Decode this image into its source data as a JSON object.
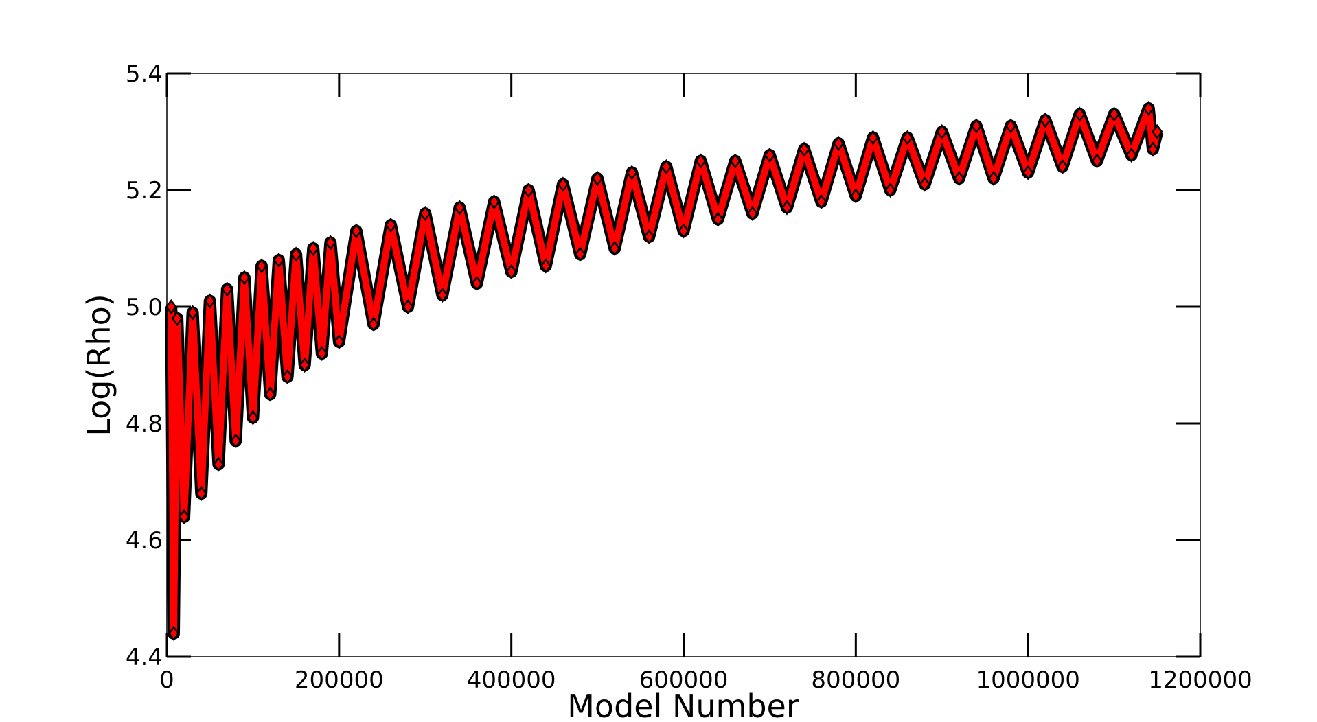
{
  "chart_data": {
    "type": "line",
    "xlabel": "Model Number",
    "ylabel": "Log(Rho)",
    "xlim": [
      0,
      1200000
    ],
    "xticks": [
      0,
      200000,
      400000,
      600000,
      800000,
      1000000,
      1200000
    ],
    "ylim": [
      4.4,
      5.4
    ],
    "yticks": [
      4.4,
      4.6,
      4.8,
      {
        "value": 5.0,
        "label": "5.0"
      },
      5.2,
      5.4
    ],
    "grid": false,
    "marker": "diamond",
    "edge_color": "#000000",
    "series": [
      {
        "color": "#ff0000",
        "x": [
          5000,
          8000,
          12000,
          20000,
          30000,
          40000,
          50000,
          60000,
          70000,
          80000,
          90000,
          100000,
          110000,
          120000,
          130000,
          140000,
          150000,
          160000,
          170000,
          180000,
          190000,
          200000,
          220000,
          240000,
          260000,
          280000,
          300000,
          320000,
          340000,
          360000,
          380000,
          400000,
          420000,
          440000,
          460000,
          480000,
          500000,
          520000,
          540000,
          560000,
          580000,
          600000,
          620000,
          640000,
          660000,
          680000,
          700000,
          720000,
          740000,
          760000,
          780000,
          800000,
          820000,
          840000,
          860000,
          880000,
          900000,
          920000,
          940000,
          960000,
          980000,
          1000000,
          1020000,
          1040000,
          1060000,
          1080000,
          1100000,
          1120000,
          1140000,
          1145000,
          1150000
        ],
        "values": [
          5.0,
          4.44,
          4.98,
          4.64,
          4.99,
          4.68,
          5.01,
          4.73,
          5.03,
          4.77,
          5.05,
          4.81,
          5.07,
          4.85,
          5.08,
          4.88,
          5.09,
          4.9,
          5.1,
          4.92,
          5.11,
          4.94,
          5.13,
          4.97,
          5.14,
          5.0,
          5.16,
          5.02,
          5.17,
          5.04,
          5.18,
          5.06,
          5.2,
          5.07,
          5.21,
          5.09,
          5.22,
          5.1,
          5.23,
          5.12,
          5.24,
          5.13,
          5.25,
          5.15,
          5.25,
          5.16,
          5.26,
          5.17,
          5.27,
          5.18,
          5.28,
          5.19,
          5.29,
          5.2,
          5.29,
          5.21,
          5.3,
          5.22,
          5.31,
          5.22,
          5.31,
          5.23,
          5.32,
          5.24,
          5.33,
          5.25,
          5.33,
          5.26,
          5.34,
          5.27,
          5.3
        ]
      }
    ]
  }
}
